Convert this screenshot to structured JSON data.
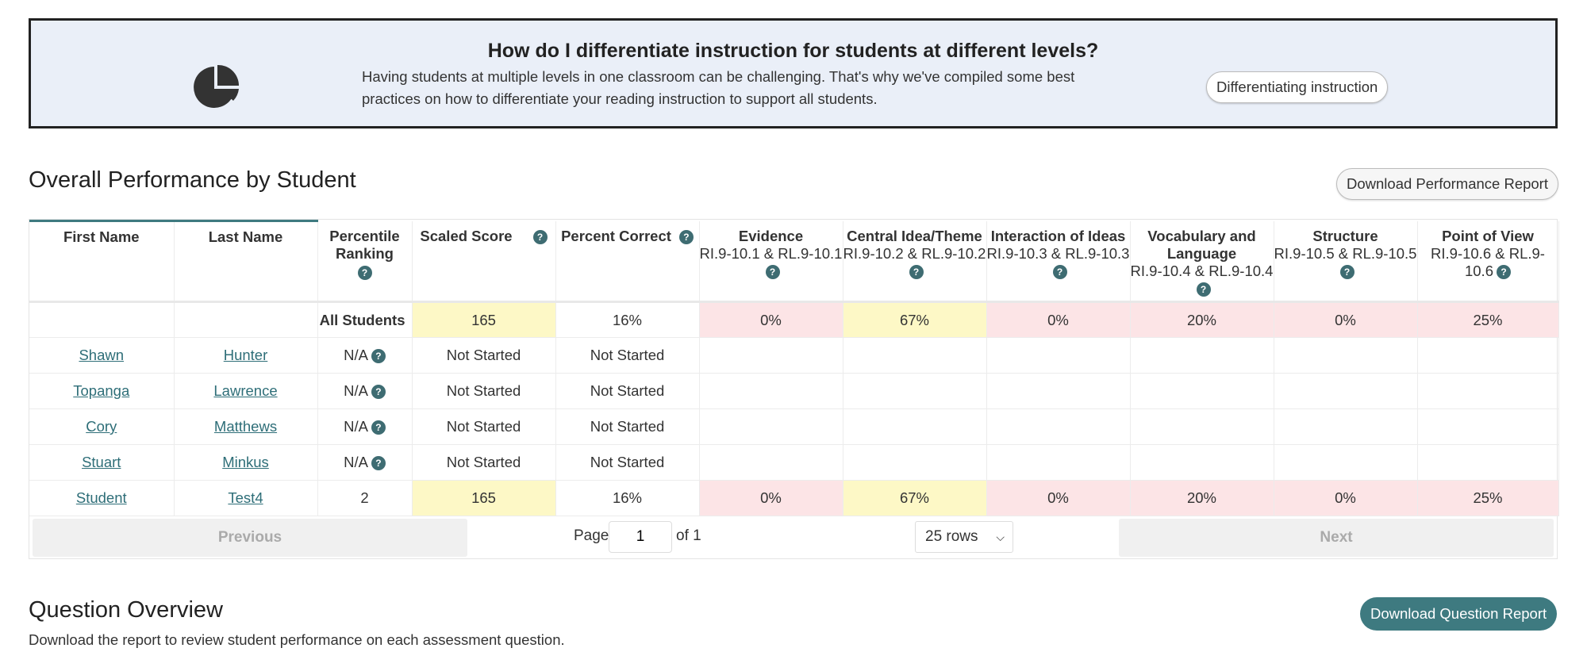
{
  "banner": {
    "title": "How do I differentiate instruction for students at different levels?",
    "text": "Having students at multiple levels in one classroom can be challenging. That's why we've compiled some best practices on how to differentiate your reading instruction to support all students.",
    "button": "Differentiating instruction",
    "icon": "pie-chart-icon"
  },
  "performance": {
    "title": "Overall Performance by Student",
    "download_label": "Download Performance Report",
    "columns": [
      {
        "title": "First Name",
        "sub": ""
      },
      {
        "title": "Last Name",
        "sub": ""
      },
      {
        "title": "Percentile Ranking",
        "sub": ""
      },
      {
        "title": "Scaled Score",
        "sub": ""
      },
      {
        "title": "Percent Correct",
        "sub": ""
      },
      {
        "title": "Evidence",
        "sub": "RI.9-10.1 & RL.9-10.1"
      },
      {
        "title": "Central Idea/Theme",
        "sub": "RI.9-10.2 & RL.9-10.2"
      },
      {
        "title": "Interaction of Ideas",
        "sub": "RI.9-10.3 & RL.9-10.3"
      },
      {
        "title": "Vocabulary and Language",
        "sub": "RI.9-10.4 & RL.9-10.4"
      },
      {
        "title": "Structure",
        "sub": "RI.9-10.5 & RL.9-10.5"
      },
      {
        "title": "Point of View",
        "sub": "RI.9-10.6 & RL.9-10.6"
      }
    ],
    "all_students": {
      "label": "All Students",
      "values": [
        "165",
        "16%",
        "0%",
        "67%",
        "0%",
        "20%",
        "0%",
        "25%"
      ]
    },
    "rows": [
      {
        "first": "Shawn",
        "last": "Hunter",
        "percentile": "N/A",
        "scaled": "Not Started",
        "percent": "Not Started",
        "skills": [
          "",
          "",
          "",
          "",
          "",
          ""
        ]
      },
      {
        "first": "Topanga",
        "last": "Lawrence",
        "percentile": "N/A",
        "scaled": "Not Started",
        "percent": "Not Started",
        "skills": [
          "",
          "",
          "",
          "",
          "",
          ""
        ]
      },
      {
        "first": "Cory",
        "last": "Matthews",
        "percentile": "N/A",
        "scaled": "Not Started",
        "percent": "Not Started",
        "skills": [
          "",
          "",
          "",
          "",
          "",
          ""
        ]
      },
      {
        "first": "Stuart",
        "last": "Minkus",
        "percentile": "N/A",
        "scaled": "Not Started",
        "percent": "Not Started",
        "skills": [
          "",
          "",
          "",
          "",
          "",
          ""
        ]
      },
      {
        "first": "Student",
        "last": "Test4",
        "percentile": "2",
        "scaled": "165",
        "percent": "16%",
        "skills": [
          "0%",
          "67%",
          "0%",
          "20%",
          "0%",
          "25%"
        ]
      }
    ],
    "pagination": {
      "previous": "Previous",
      "next": "Next",
      "page_label": "Page",
      "page_value": "1",
      "of_label": "of 1",
      "rows_selected": "25 rows"
    }
  },
  "question_overview": {
    "title": "Question Overview",
    "download_label": "Download Question Report",
    "description": "Download the report to review student performance on each assessment question."
  },
  "colors": {
    "accent": "#3e7a80",
    "highlight_yellow": "#fdf8c6",
    "highlight_pink": "#fce4e6",
    "banner_bg": "#eaeff8"
  }
}
